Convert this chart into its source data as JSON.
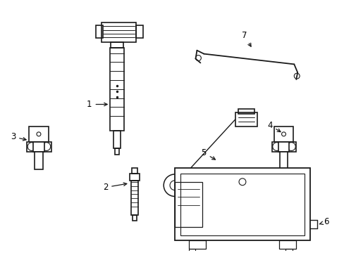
{
  "background_color": "#ffffff",
  "line_color": "#1a1a1a",
  "lw": 1.2,
  "figsize": [
    4.89,
    3.6
  ],
  "dpi": 100
}
